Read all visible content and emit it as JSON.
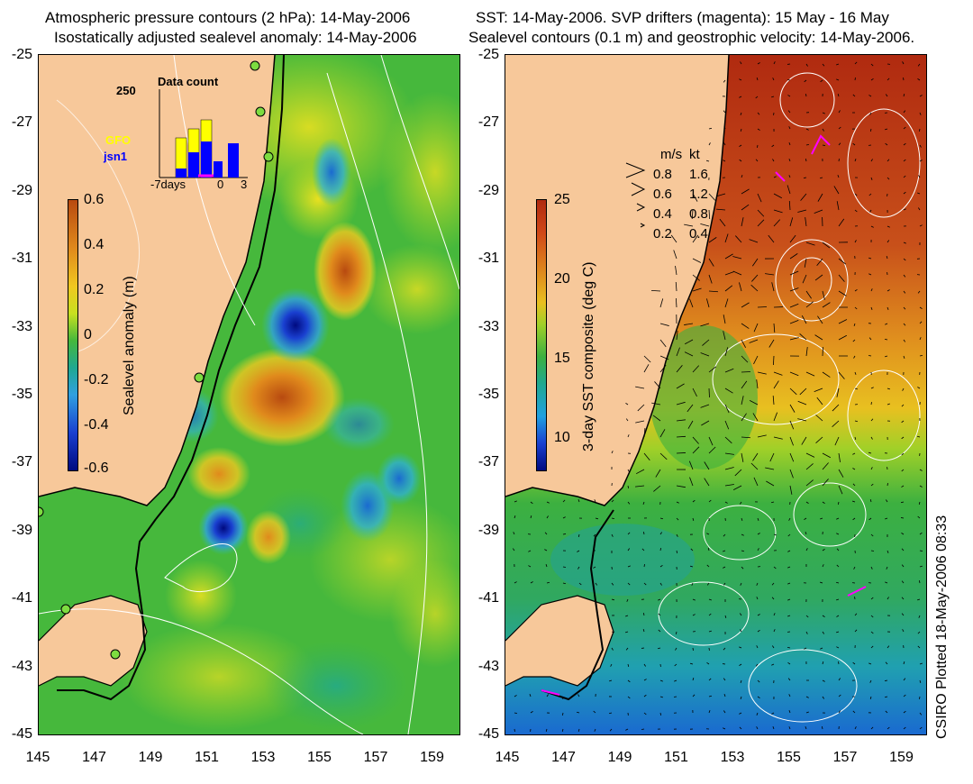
{
  "left_panel": {
    "title_line1": "Atmospheric pressure contours (2 hPa): 14-May-2006",
    "title_line2": "Isostatically adjusted sealevel anomaly: 14-May-2006",
    "colorbar_label": "Sealevel anomaly (m)",
    "colorbar_ticks": [
      "0.6",
      "0.4",
      "0.2",
      "0",
      "-0.2",
      "-0.4",
      "-0.6"
    ],
    "inset": {
      "title": "Data count",
      "ymax_label": "250",
      "series": [
        {
          "name": "GFO",
          "color": "#ffff00"
        },
        {
          "name": "jsn1",
          "color": "#0000ff"
        }
      ],
      "x_labels": [
        "-7days",
        "0",
        "3"
      ]
    },
    "colors": {
      "positive": "#c0501b",
      "negative": "#000a80",
      "land": "#f7c89a",
      "ocean_base": "#4dbf3c"
    }
  },
  "right_panel": {
    "title_line1": "SST: 14-May-2006. SVP drifters (magenta): 15 May - 16 May",
    "title_line2": "Sealevel contours (0.1 m) and geostrophic velocity: 14-May-2006.",
    "colorbar_label": "3-day SST composite (deg C)",
    "colorbar_ticks": [
      "25",
      "20",
      "15",
      "10"
    ],
    "velocity_legend": {
      "header_ms": "m/s",
      "header_kt": "kt",
      "rows": [
        {
          "ms": "0.8",
          "kt": "1.6"
        },
        {
          "ms": "0.6",
          "kt": "1.2"
        },
        {
          "ms": "0.4",
          "kt": "0.8"
        },
        {
          "ms": "0.2",
          "kt": "0.4"
        }
      ]
    },
    "colors": {
      "warm": "#b02a10",
      "cool": "#1a6ad0",
      "drifters": "#ff00ff"
    }
  },
  "axes": {
    "y_labels": [
      "-25",
      "-27",
      "-29",
      "-31",
      "-33",
      "-35",
      "-37",
      "-39",
      "-41",
      "-43",
      "-45"
    ],
    "x_labels": [
      "145",
      "147",
      "149",
      "151",
      "153",
      "155",
      "157",
      "159"
    ]
  },
  "credit": "CSIRO Plotted 18-May-2006 08:33"
}
